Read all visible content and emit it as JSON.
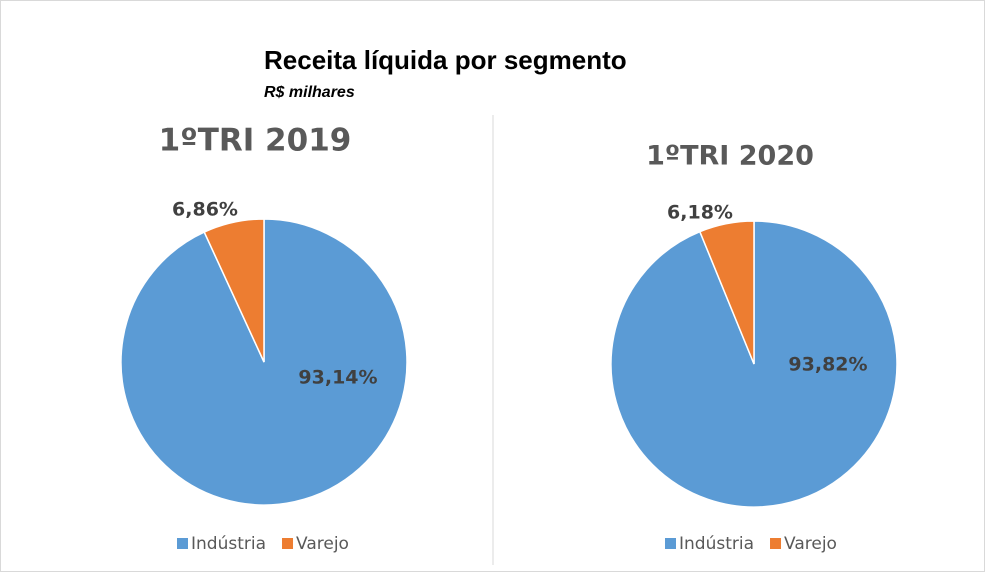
{
  "title": "Receita líquida por segmento",
  "subtitle": "R$ milhares",
  "chart_data": [
    {
      "type": "pie",
      "title": "1ºTRI 2019",
      "categories": [
        "Indústria",
        "Varejo"
      ],
      "values": [
        93.14,
        6.86
      ],
      "value_labels": [
        "93,14%",
        "6,86%"
      ],
      "colors": [
        "#5b9bd5",
        "#ed7d31"
      ],
      "legend": "bottom"
    },
    {
      "type": "pie",
      "title": "1ºTRI 2020",
      "categories": [
        "Indústria",
        "Varejo"
      ],
      "values": [
        93.82,
        6.18
      ],
      "value_labels": [
        "93,82%",
        "6,18%"
      ],
      "colors": [
        "#5b9bd5",
        "#ed7d31"
      ],
      "legend": "bottom"
    }
  ]
}
